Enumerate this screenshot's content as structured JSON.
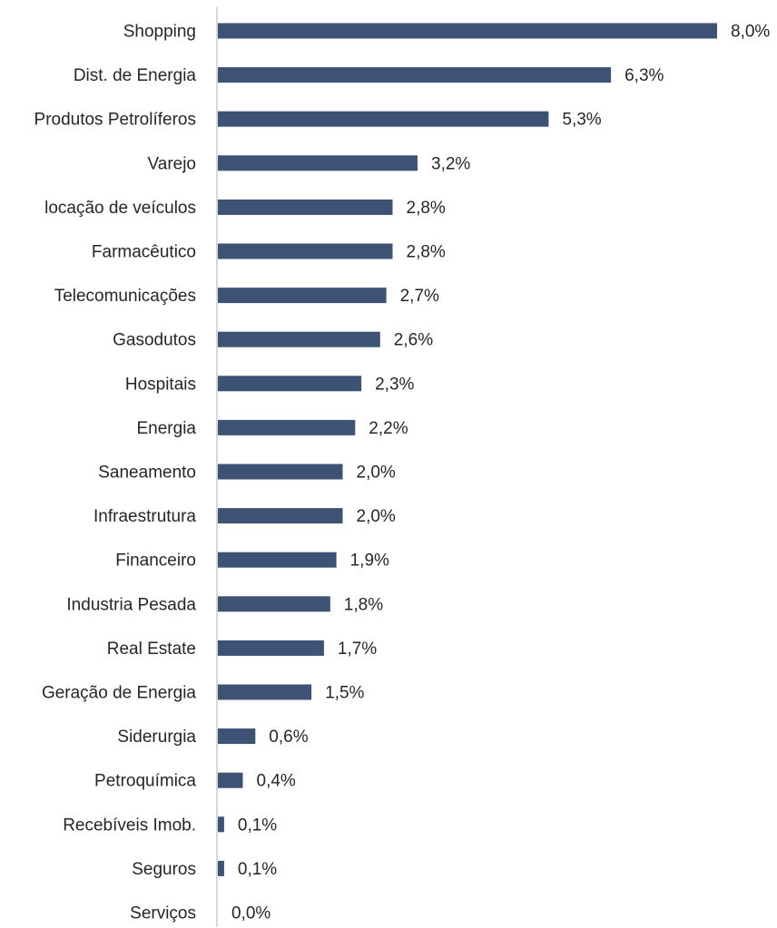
{
  "chart_data": {
    "type": "bar",
    "orientation": "horizontal",
    "categories": [
      "Shopping",
      "Dist. de Energia",
      "Produtos Petrolíferos",
      "Varejo",
      "locação de veículos",
      "Farmacêutico",
      "Telecomunicações",
      "Gasodutos",
      "Hospitais",
      "Energia",
      "Saneamento",
      "Infraestrutura",
      "Financeiro",
      "Industria Pesada",
      "Real Estate",
      "Geração de Energia",
      "Siderurgia",
      "Petroquímica",
      "Recebíveis Imob.",
      "Seguros",
      "Serviços"
    ],
    "values": [
      8.0,
      6.3,
      5.3,
      3.2,
      2.8,
      2.8,
      2.7,
      2.6,
      2.3,
      2.2,
      2.0,
      2.0,
      1.9,
      1.8,
      1.7,
      1.5,
      0.6,
      0.4,
      0.1,
      0.1,
      0.0
    ],
    "data_labels": [
      "8,0%",
      "6,3%",
      "5,3%",
      "3,2%",
      "2,8%",
      "2,8%",
      "2,7%",
      "2,6%",
      "2,3%",
      "2,2%",
      "2,0%",
      "2,0%",
      "1,9%",
      "1,8%",
      "1,7%",
      "1,5%",
      "0,6%",
      "0,4%",
      "0,1%",
      "0,1%",
      "0,0%"
    ],
    "unit": "%",
    "xlim": [
      0,
      8.0
    ],
    "grid": false,
    "legend": "none",
    "bar_color": "#3d5275",
    "axis_color": "#d9d9d9"
  }
}
